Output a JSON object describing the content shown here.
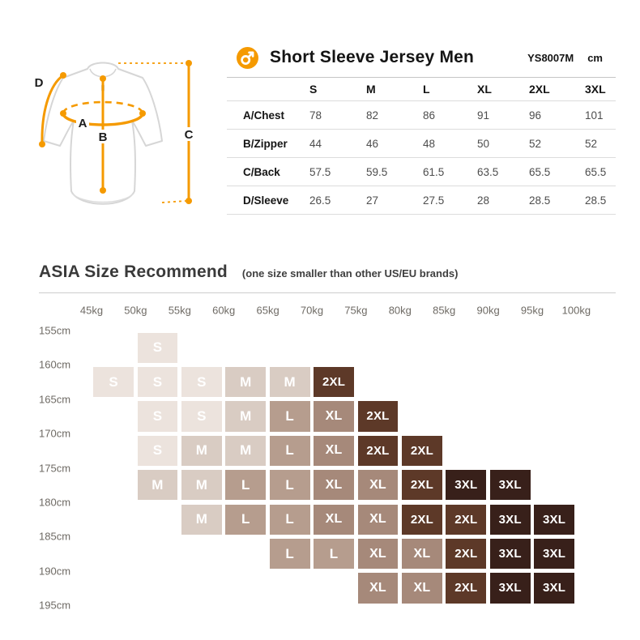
{
  "header": {
    "brand_icon": "male-symbol-icon",
    "accent_color": "#F59A00",
    "title": "Short Sleeve Jersey Men",
    "model_code": "YS8007M",
    "unit": "cm"
  },
  "diagram": {
    "labels": [
      "A",
      "B",
      "C",
      "D"
    ],
    "accent_color": "#F59A00",
    "outline_color": "#d6d6d6"
  },
  "asia": {
    "title": "ASIA Size Recommend",
    "subtitle": "(one size smaller than other US/EU brands)"
  },
  "chart_data": [
    {
      "type": "table",
      "title": "Short Sleeve Jersey Men",
      "model": "YS8007M",
      "unit": "cm",
      "columns": [
        "S",
        "M",
        "L",
        "XL",
        "2XL",
        "3XL"
      ],
      "rows": [
        {
          "label": "A/Chest",
          "values": [
            78,
            82,
            86,
            91,
            96,
            101
          ]
        },
        {
          "label": "B/Zipper",
          "values": [
            44,
            46,
            48,
            50,
            52,
            52
          ]
        },
        {
          "label": "C/Back",
          "values": [
            57.5,
            59.5,
            61.5,
            63.5,
            65.5,
            65.5
          ]
        },
        {
          "label": "D/Sleeve",
          "values": [
            26.5,
            27,
            27.5,
            28,
            28.5,
            28.5
          ]
        }
      ]
    },
    {
      "type": "heatmap",
      "title": "ASIA Size Recommend",
      "x_axis": {
        "label": "weight",
        "ticks": [
          "45kg",
          "50kg",
          "55kg",
          "60kg",
          "65kg",
          "70kg",
          "75kg",
          "80kg",
          "85kg",
          "90kg",
          "95kg",
          "100kg"
        ]
      },
      "y_axis": {
        "label": "height",
        "ticks": [
          "155cm",
          "160cm",
          "165cm",
          "170cm",
          "175cm",
          "180cm",
          "185cm",
          "190cm",
          "195cm"
        ]
      },
      "note": "each cell fills the band between adjacent weight ticks (col) and height ticks (row); indices are 0-based band numbers",
      "legend_position": "none",
      "grid": "off",
      "cell_text_color": "#ffffff",
      "size_colors": {
        "S": "#ece3dd",
        "M": "#d9ccc3",
        "L": "#b69d8e",
        "XL": "#a6897a",
        "2XL": "#5d3928",
        "3XL": "#38201a"
      },
      "cells": [
        {
          "row": 0,
          "col": 1,
          "size": "S"
        },
        {
          "row": 1,
          "col": 0,
          "size": "S"
        },
        {
          "row": 1,
          "col": 1,
          "size": "S"
        },
        {
          "row": 1,
          "col": 2,
          "size": "S"
        },
        {
          "row": 1,
          "col": 3,
          "size": "M"
        },
        {
          "row": 1,
          "col": 4,
          "size": "M"
        },
        {
          "row": 1,
          "col": 5,
          "size": "2XL"
        },
        {
          "row": 2,
          "col": 1,
          "size": "S"
        },
        {
          "row": 2,
          "col": 2,
          "size": "S"
        },
        {
          "row": 2,
          "col": 3,
          "size": "M"
        },
        {
          "row": 2,
          "col": 4,
          "size": "L"
        },
        {
          "row": 2,
          "col": 5,
          "size": "XL"
        },
        {
          "row": 2,
          "col": 6,
          "size": "2XL"
        },
        {
          "row": 3,
          "col": 1,
          "size": "S"
        },
        {
          "row": 3,
          "col": 2,
          "size": "M"
        },
        {
          "row": 3,
          "col": 3,
          "size": "M"
        },
        {
          "row": 3,
          "col": 4,
          "size": "L"
        },
        {
          "row": 3,
          "col": 5,
          "size": "XL"
        },
        {
          "row": 3,
          "col": 6,
          "size": "2XL"
        },
        {
          "row": 3,
          "col": 7,
          "size": "2XL"
        },
        {
          "row": 4,
          "col": 1,
          "size": "M"
        },
        {
          "row": 4,
          "col": 2,
          "size": "M"
        },
        {
          "row": 4,
          "col": 3,
          "size": "L"
        },
        {
          "row": 4,
          "col": 4,
          "size": "L"
        },
        {
          "row": 4,
          "col": 5,
          "size": "XL"
        },
        {
          "row": 4,
          "col": 6,
          "size": "XL"
        },
        {
          "row": 4,
          "col": 7,
          "size": "2XL"
        },
        {
          "row": 4,
          "col": 8,
          "size": "3XL"
        },
        {
          "row": 4,
          "col": 9,
          "size": "3XL"
        },
        {
          "row": 5,
          "col": 2,
          "size": "M"
        },
        {
          "row": 5,
          "col": 3,
          "size": "L"
        },
        {
          "row": 5,
          "col": 4,
          "size": "L"
        },
        {
          "row": 5,
          "col": 5,
          "size": "XL"
        },
        {
          "row": 5,
          "col": 6,
          "size": "XL"
        },
        {
          "row": 5,
          "col": 7,
          "size": "2XL"
        },
        {
          "row": 5,
          "col": 8,
          "size": "2XL"
        },
        {
          "row": 5,
          "col": 9,
          "size": "3XL"
        },
        {
          "row": 5,
          "col": 10,
          "size": "3XL"
        },
        {
          "row": 6,
          "col": 4,
          "size": "L"
        },
        {
          "row": 6,
          "col": 5,
          "size": "L"
        },
        {
          "row": 6,
          "col": 6,
          "size": "XL"
        },
        {
          "row": 6,
          "col": 7,
          "size": "XL"
        },
        {
          "row": 6,
          "col": 8,
          "size": "2XL"
        },
        {
          "row": 6,
          "col": 9,
          "size": "3XL"
        },
        {
          "row": 6,
          "col": 10,
          "size": "3XL"
        },
        {
          "row": 7,
          "col": 6,
          "size": "XL"
        },
        {
          "row": 7,
          "col": 7,
          "size": "XL"
        },
        {
          "row": 7,
          "col": 8,
          "size": "2XL"
        },
        {
          "row": 7,
          "col": 9,
          "size": "3XL"
        },
        {
          "row": 7,
          "col": 10,
          "size": "3XL"
        }
      ]
    }
  ]
}
